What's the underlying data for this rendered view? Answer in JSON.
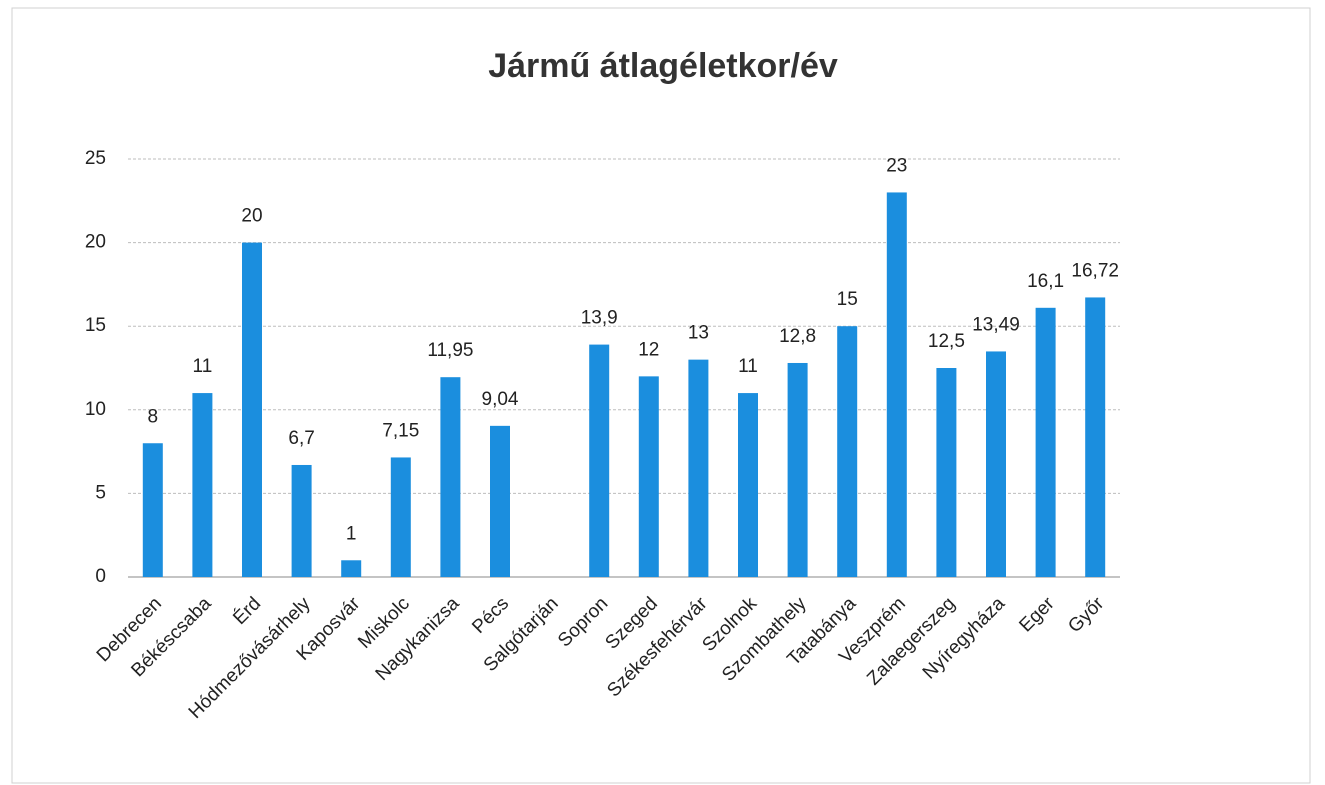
{
  "chart_data": {
    "type": "bar",
    "title": "Jármű átlagéletkor/év",
    "categories": [
      "Debrecen",
      "Békéscsaba",
      "Érd",
      "Hódmezővásárhely",
      "Kaposvár",
      "Miskolc",
      "Nagykanizsa",
      "Pécs",
      "Salgótarján",
      "Sopron",
      "Szeged",
      "Székesfehérvár",
      "Szolnok",
      "Szombathely",
      "Tatabánya",
      "Veszprém",
      "Zalaegerszeg",
      "Nyíregyháza",
      "Eger",
      "Győr"
    ],
    "values": [
      8,
      11,
      20,
      6.7,
      1,
      7.15,
      11.95,
      9.04,
      null,
      13.9,
      12,
      13,
      11,
      12.8,
      15,
      23,
      12.5,
      13.49,
      16.1,
      16.72
    ],
    "value_labels": [
      "8",
      "11",
      "20",
      "6,7",
      "1",
      "7,15",
      "11,95",
      "9,04",
      null,
      "13,9",
      "12",
      "13",
      "11",
      "12,8",
      "15",
      "23",
      "12,5",
      "13,49",
      "16,1",
      "16,72"
    ],
    "color": "#1b8ede",
    "ylim": [
      0,
      25
    ],
    "yticks": [
      0,
      5,
      10,
      15,
      20,
      25
    ],
    "grid": true
  }
}
